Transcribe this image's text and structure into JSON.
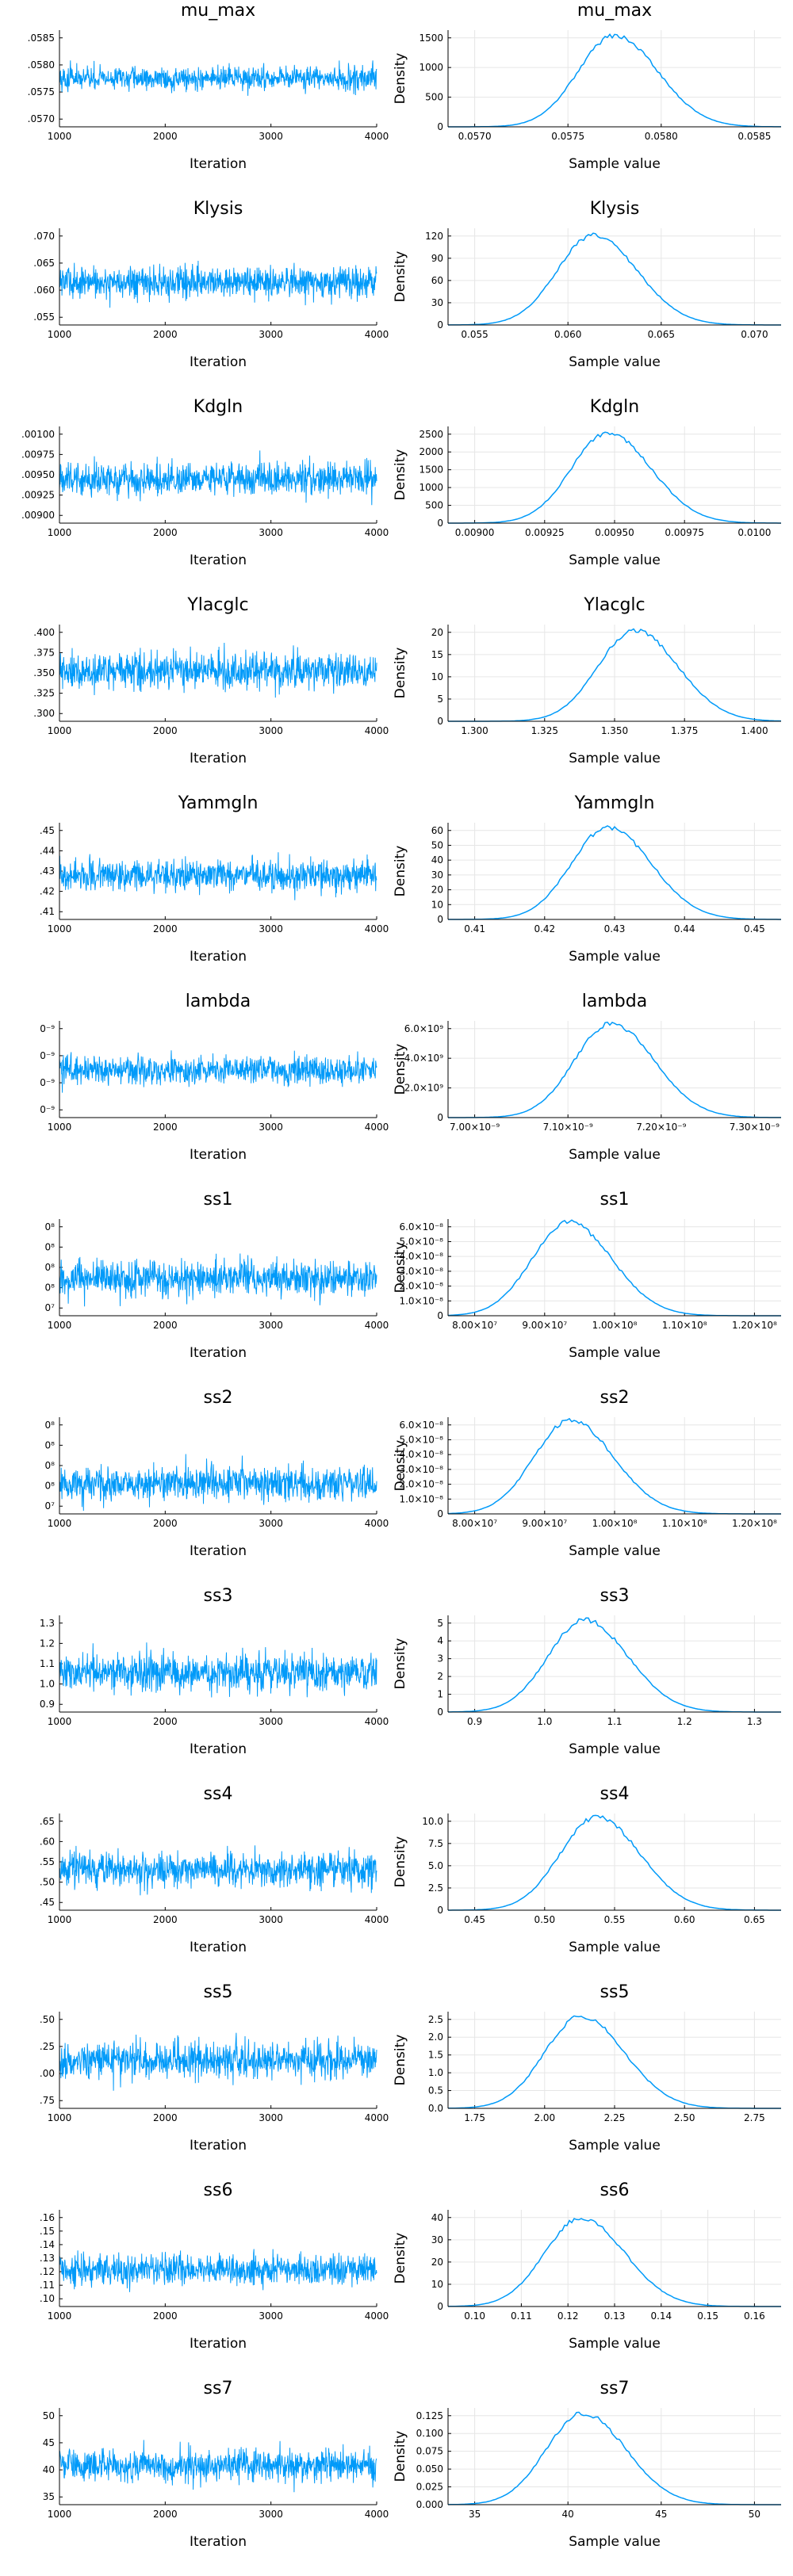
{
  "colors": {
    "series": "#009AF9",
    "axis": "#000000",
    "grid": "#e6e6e6"
  },
  "chart_data": [
    {
      "type": "line",
      "panel": "trace",
      "title": "mu_max",
      "xlabel": "Iteration",
      "ylabel": "",
      "x_ticks": [
        "1000",
        "2000",
        "3000",
        "4000"
      ],
      "y_ticks": [
        ".0585",
        ".0580",
        ".0575",
        ".0570"
      ],
      "xlim": [
        1000,
        4000
      ],
      "ylim": [
        0.0568,
        0.0588
      ],
      "center": 0.0578,
      "spread": 0.0002
    },
    {
      "type": "line",
      "panel": "density",
      "title": "mu_max",
      "xlabel": "Sample value",
      "ylabel": "Density",
      "x_ticks": [
        "0.0570",
        "0.0575",
        "0.0580",
        "0.0585"
      ],
      "y_ticks": [
        "0",
        "500",
        "1000",
        "1500"
      ],
      "xlim": [
        0.0567,
        0.0589
      ],
      "ylim": [
        0,
        1800
      ],
      "mode": 0.0578,
      "peak": 1700
    },
    {
      "type": "line",
      "panel": "trace",
      "title": "Klysis",
      "xlabel": "Iteration",
      "ylabel": "",
      "x_ticks": [
        "1000",
        "2000",
        "3000",
        "4000"
      ],
      "y_ticks": [
        ".070",
        ".065",
        ".060",
        ".055"
      ],
      "xlim": [
        1000,
        4000
      ],
      "ylim": [
        0.051,
        0.073
      ],
      "center": 0.0607,
      "spread": 0.003
    },
    {
      "type": "line",
      "panel": "density",
      "title": "Klysis",
      "xlabel": "Sample value",
      "ylabel": "Density",
      "x_ticks": [
        "0.055",
        "0.060",
        "0.065",
        "0.070"
      ],
      "y_ticks": [
        "0",
        "30",
        "60",
        "90",
        "120"
      ],
      "xlim": [
        0.05,
        0.074
      ],
      "ylim": [
        0,
        145
      ],
      "mode": 0.0605,
      "peak": 135
    },
    {
      "type": "line",
      "panel": "trace",
      "title": "Kdgln",
      "xlabel": "Iteration",
      "ylabel": "",
      "x_ticks": [
        "1000",
        "2000",
        "3000",
        "4000"
      ],
      "y_ticks": [
        ".00100",
        ".00975",
        ".00950",
        ".00925",
        ".00900"
      ],
      "xlim": [
        1000,
        4000
      ],
      "ylim": [
        0.00885,
        0.01005
      ],
      "center": 0.0094,
      "spread": 0.00017
    },
    {
      "type": "line",
      "panel": "density",
      "title": "Kdgln",
      "xlabel": "Sample value",
      "ylabel": "Density",
      "x_ticks": [
        "0.00900",
        "0.00925",
        "0.00950",
        "0.00975",
        "0.0100"
      ],
      "y_ticks": [
        "0",
        "500",
        "1000",
        "1500",
        "2000",
        "2500"
      ],
      "xlim": [
        0.0088,
        0.01005
      ],
      "ylim": [
        0,
        2600
      ],
      "mode": 0.0094,
      "peak": 2420
    },
    {
      "type": "line",
      "panel": "trace",
      "title": "Ylacglc",
      "xlabel": "Iteration",
      "ylabel": "",
      "x_ticks": [
        "1000",
        "2000",
        "3000",
        "4000"
      ],
      "y_ticks": [
        ".400",
        ".375",
        ".350",
        ".325",
        ".300"
      ],
      "xlim": [
        1000,
        4000
      ],
      "ylim": [
        1.295,
        1.405
      ],
      "center": 1.352,
      "spread": 0.017
    },
    {
      "type": "line",
      "panel": "density",
      "title": "Ylacglc",
      "xlabel": "Sample value",
      "ylabel": "Density",
      "x_ticks": [
        "1.300",
        "1.325",
        "1.350",
        "1.375",
        "1.400"
      ],
      "y_ticks": [
        "0",
        "5",
        "10",
        "15",
        "20"
      ],
      "xlim": [
        1.285,
        1.41
      ],
      "ylim": [
        0,
        25
      ],
      "mode": 1.355,
      "peak": 23.5
    },
    {
      "type": "line",
      "panel": "trace",
      "title": "Yammgln",
      "xlabel": "Iteration",
      "ylabel": "",
      "x_ticks": [
        "1000",
        "2000",
        "3000",
        "4000"
      ],
      "y_ticks": [
        ".45",
        ".44",
        ".43",
        ".42",
        ".41"
      ],
      "xlim": [
        1000,
        4000
      ],
      "ylim": [
        0.407,
        0.455
      ],
      "center": 0.429,
      "spread": 0.0065
    },
    {
      "type": "line",
      "panel": "density",
      "title": "Yammgln",
      "xlabel": "Sample value",
      "ylabel": "Density",
      "x_ticks": [
        "0.41",
        "0.42",
        "0.43",
        "0.44",
        "0.45"
      ],
      "y_ticks": [
        "0",
        "10",
        "20",
        "30",
        "40",
        "50",
        "60"
      ],
      "xlim": [
        0.405,
        0.455
      ],
      "ylim": [
        0,
        65
      ],
      "mode": 0.429,
      "peak": 62
    },
    {
      "type": "line",
      "panel": "trace",
      "title": "lambda",
      "xlabel": "Iteration",
      "ylabel": "",
      "x_ticks": [
        "1000",
        "2000",
        "3000",
        "4000"
      ],
      "y_ticks": [
        "0⁻⁹",
        "0⁻⁹",
        "0⁻⁹",
        "0⁻⁹"
      ],
      "xlim": [
        1000,
        4000
      ],
      "ylim": [
        6.95e-09,
        7.4e-09
      ],
      "center": 7.17e-09,
      "spread": 5.5e-11
    },
    {
      "type": "line",
      "panel": "density",
      "title": "lambda",
      "xlabel": "Sample value",
      "ylabel": "Density",
      "x_ticks": [
        "7.00×10⁻⁹",
        "7.10×10⁻⁹",
        "7.20×10⁻⁹",
        "7.30×10⁻⁹"
      ],
      "y_ticks": [
        "0",
        "2.0×10⁹",
        "4.0×10⁹",
        "6.0×10⁹"
      ],
      "xlim": [
        6.95e-09,
        7.4e-09
      ],
      "ylim": [
        0,
        7200000000.0
      ],
      "mode": 7.17e-09,
      "peak": 7000000000.0
    },
    {
      "type": "line",
      "panel": "trace",
      "title": "ss1",
      "xlabel": "Iteration",
      "ylabel": "",
      "x_ticks": [
        "1000",
        "2000",
        "3000",
        "4000"
      ],
      "y_ticks": [
        "0⁸",
        "0⁸",
        "0⁸",
        "0⁸",
        "0⁷"
      ],
      "xlim": [
        1000,
        4000
      ],
      "ylim": [
        78000000.0,
        122000000.0
      ],
      "center": 95000000.0,
      "spread": 6500000.0
    },
    {
      "type": "line",
      "panel": "density",
      "title": "ss1",
      "xlabel": "Sample value",
      "ylabel": "Density",
      "x_ticks": [
        "8.00×10⁷",
        "9.00×10⁷",
        "1.00×10⁸",
        "1.10×10⁸",
        "1.20×10⁸"
      ],
      "y_ticks": [
        "0",
        "1.0×10⁻⁸",
        "2.0×10⁻⁸",
        "3.0×10⁻⁸",
        "4.0×10⁻⁸",
        "5.0×10⁻⁸",
        "6.0×10⁻⁸"
      ],
      "xlim": [
        76000000.0,
        123000000.0
      ],
      "ylim": [
        0,
        6.2e-08
      ],
      "mode": 93000000.0,
      "peak": 6e-08
    },
    {
      "type": "line",
      "panel": "trace",
      "title": "ss2",
      "xlabel": "Iteration",
      "ylabel": "",
      "x_ticks": [
        "1000",
        "2000",
        "3000",
        "4000"
      ],
      "y_ticks": [
        "0⁸",
        "0⁸",
        "0⁸",
        "0⁸",
        "0⁷"
      ],
      "xlim": [
        1000,
        4000
      ],
      "ylim": [
        78000000.0,
        122000000.0
      ],
      "center": 92000000.0,
      "spread": 6500000.0
    },
    {
      "type": "line",
      "panel": "density",
      "title": "ss2",
      "xlabel": "Sample value",
      "ylabel": "Density",
      "x_ticks": [
        "8.00×10⁷",
        "9.00×10⁷",
        "1.00×10⁸",
        "1.10×10⁸",
        "1.20×10⁸"
      ],
      "y_ticks": [
        "0",
        "1.0×10⁻⁸",
        "2.0×10⁻⁸",
        "3.0×10⁻⁸",
        "4.0×10⁻⁸",
        "5.0×10⁻⁸",
        "6.0×10⁻⁸"
      ],
      "xlim": [
        72000000.0,
        121000000.0
      ],
      "ylim": [
        0,
        6.2e-08
      ],
      "mode": 90000000.0,
      "peak": 6e-08
    },
    {
      "type": "line",
      "panel": "trace",
      "title": "ss3",
      "xlabel": "Iteration",
      "ylabel": "",
      "x_ticks": [
        "1000",
        "2000",
        "3000",
        "4000"
      ],
      "y_ticks": [
        "1.3",
        "1.2",
        "1.1",
        "1.0",
        "0.9"
      ],
      "xlim": [
        1000,
        4000
      ],
      "ylim": [
        0.88,
        1.35
      ],
      "center": 1.07,
      "spread": 0.075
    },
    {
      "type": "line",
      "panel": "density",
      "title": "ss3",
      "xlabel": "Sample value",
      "ylabel": "Density",
      "x_ticks": [
        "0.9",
        "1.0",
        "1.1",
        "1.2",
        "1.3"
      ],
      "y_ticks": [
        "0",
        "1",
        "2",
        "3",
        "4",
        "5"
      ],
      "xlim": [
        0.86,
        1.36
      ],
      "ylim": [
        0,
        5.3
      ],
      "mode": 1.065,
      "peak": 5.05
    },
    {
      "type": "line",
      "panel": "trace",
      "title": "ss4",
      "xlabel": "Iteration",
      "ylabel": "",
      "x_ticks": [
        "1000",
        "2000",
        "3000",
        "4000"
      ],
      "y_ticks": [
        ".65",
        ".60",
        ".55",
        ".50",
        ".45"
      ],
      "xlim": [
        1000,
        4000
      ],
      "ylim": [
        0.42,
        0.67
      ],
      "center": 0.525,
      "spread": 0.038
    },
    {
      "type": "line",
      "panel": "density",
      "title": "ss4",
      "xlabel": "Sample value",
      "ylabel": "Density",
      "x_ticks": [
        "0.45",
        "0.50",
        "0.55",
        "0.60",
        "0.65"
      ],
      "y_ticks": [
        "0",
        "2.5",
        "5.0",
        "7.5",
        "10.0"
      ],
      "xlim": [
        0.4,
        0.68
      ],
      "ylim": [
        0,
        10.8
      ],
      "mode": 0.525,
      "peak": 10.4
    },
    {
      "type": "line",
      "panel": "trace",
      "title": "ss5",
      "xlabel": "Iteration",
      "ylabel": "",
      "x_ticks": [
        "1000",
        "2000",
        "3000",
        "4000"
      ],
      "y_ticks": [
        ".50",
        ".25",
        ".00",
        ".75"
      ],
      "xlim": [
        1000,
        4000
      ],
      "ylim": [
        1.72,
        2.58
      ],
      "center": 2.15,
      "spread": 0.14
    },
    {
      "type": "line",
      "panel": "density",
      "title": "ss5",
      "xlabel": "Sample value",
      "ylabel": "Density",
      "x_ticks": [
        "1.75",
        "2.00",
        "2.25",
        "2.50",
        "2.75"
      ],
      "y_ticks": [
        "0.0",
        "0.5",
        "1.0",
        "1.5",
        "2.0",
        "2.5"
      ],
      "xlim": [
        1.66,
        2.86
      ],
      "ylim": [
        0,
        2.6
      ],
      "mode": 2.14,
      "peak": 2.48
    },
    {
      "type": "line",
      "panel": "trace",
      "title": "ss6",
      "xlabel": "Iteration",
      "ylabel": "",
      "x_ticks": [
        "1000",
        "2000",
        "3000",
        "4000"
      ],
      "y_ticks": [
        ".16",
        ".15",
        ".14",
        ".13",
        ".12",
        ".11",
        ".10"
      ],
      "xlim": [
        1000,
        4000
      ],
      "ylim": [
        0.097,
        0.165
      ],
      "center": 0.123,
      "spread": 0.009
    },
    {
      "type": "line",
      "panel": "density",
      "title": "ss6",
      "xlabel": "Sample value",
      "ylabel": "Density",
      "x_ticks": [
        "0.10",
        "0.11",
        "0.12",
        "0.13",
        "0.14",
        "0.15",
        "0.16"
      ],
      "y_ticks": [
        "0",
        "10",
        "20",
        "30",
        "40"
      ],
      "xlim": [
        0.094,
        0.164
      ],
      "ylim": [
        0,
        48
      ],
      "mode": 0.122,
      "peak": 44
    },
    {
      "type": "line",
      "panel": "trace",
      "title": "ss7",
      "xlabel": "Iteration",
      "ylabel": "",
      "x_ticks": [
        "1000",
        "2000",
        "3000",
        "4000"
      ],
      "y_ticks": [
        "50",
        "45",
        "40",
        "35"
      ],
      "xlim": [
        1000,
        4000
      ],
      "ylim": [
        31,
        52
      ],
      "center": 39.5,
      "spread": 2.9
    },
    {
      "type": "line",
      "panel": "density",
      "title": "ss7",
      "xlabel": "Sample value",
      "ylabel": "Density",
      "x_ticks": [
        "35",
        "40",
        "45",
        "50"
      ],
      "y_ticks": [
        "0.000",
        "0.025",
        "0.050",
        "0.075",
        "0.100",
        "0.125"
      ],
      "xlim": [
        30.5,
        51.5
      ],
      "ylim": [
        0,
        0.145
      ],
      "mode": 39.0,
      "peak": 0.137
    }
  ]
}
